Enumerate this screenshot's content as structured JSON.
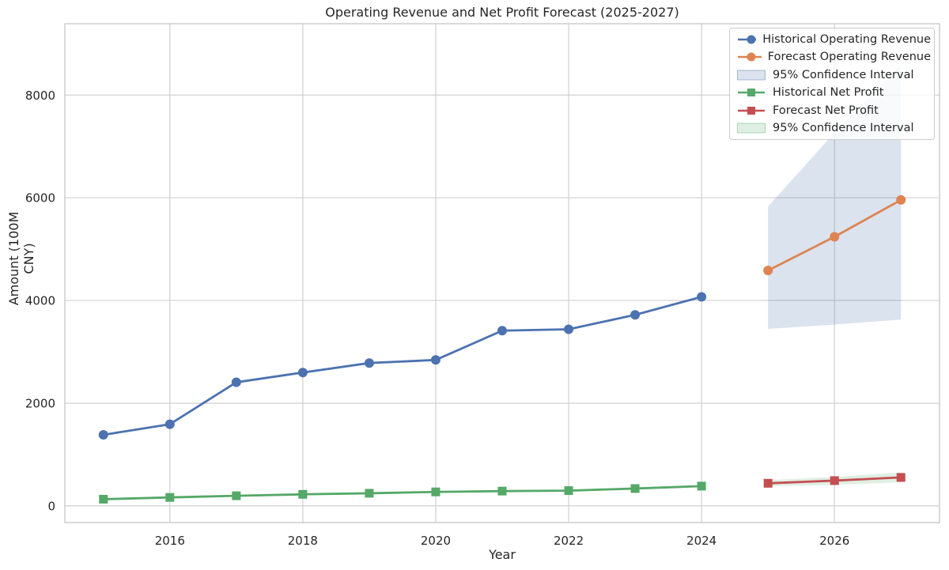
{
  "chart_data": {
    "type": "line",
    "title": "Operating Revenue and Net Profit Forecast (2025-2027)",
    "xlabel": "Year",
    "ylabel": "Amount (100M CNY)",
    "xlim": [
      2014.42,
      2027.58
    ],
    "ylim": [
      -325,
      9390
    ],
    "x_ticks": [
      2016,
      2018,
      2020,
      2022,
      2024,
      2026
    ],
    "y_ticks": [
      0,
      2000,
      4000,
      6000,
      8000
    ],
    "grid": true,
    "legend_position": "upper right",
    "colors": {
      "revenue_hist": "#4C72B0",
      "revenue_forecast": "#DD8452",
      "profit_hist": "#55A868",
      "profit_forecast": "#C44E52",
      "grid": "#D0D0D0",
      "spine": "#C6C6C6",
      "text": "#262626"
    },
    "series": [
      {
        "name": "95% Confidence Interval",
        "kind": "band",
        "color": "#4C72B0",
        "opacity": 0.2,
        "x": [
          2025,
          2026,
          2027
        ],
        "lower": [
          3448,
          3530,
          3628
        ],
        "upper": [
          5830,
          7270,
          8600
        ]
      },
      {
        "name": "95% Confidence Interval",
        "kind": "band",
        "color": "#55A868",
        "opacity": 0.18,
        "x": [
          2025,
          2026,
          2027
        ],
        "lower": [
          380,
          410,
          460
        ],
        "upper": [
          500,
          565,
          650
        ]
      },
      {
        "name": "Historical Operating Revenue",
        "kind": "line",
        "color": "#4C72B0",
        "marker": "circle",
        "x": [
          2015,
          2016,
          2017,
          2018,
          2019,
          2020,
          2021,
          2022,
          2023,
          2024
        ],
        "y": [
          1384,
          1590,
          2407,
          2597,
          2782,
          2842,
          3412,
          3439,
          3720,
          4071
        ]
      },
      {
        "name": "Forecast Operating Revenue",
        "kind": "line",
        "color": "#DD8452",
        "marker": "circle",
        "x": [
          2025,
          2026,
          2027
        ],
        "y": [
          4584,
          5241,
          5958
        ]
      },
      {
        "name": "Historical Net Profit",
        "kind": "line",
        "color": "#55A868",
        "marker": "square",
        "x": [
          2015,
          2016,
          2017,
          2018,
          2019,
          2020,
          2021,
          2022,
          2023,
          2024
        ],
        "y": [
          130,
          165,
          197,
          225,
          246,
          272,
          288,
          297,
          338,
          385
        ]
      },
      {
        "name": "Forecast Net Profit",
        "kind": "line",
        "color": "#C44E52",
        "marker": "square",
        "x": [
          2025,
          2026,
          2027
        ],
        "y": [
          440,
          492,
          554
        ]
      }
    ],
    "legend_items": [
      {
        "label": "Historical Operating Revenue",
        "swatch": "line-circle",
        "color": "#4C72B0"
      },
      {
        "label": "Forecast Operating Revenue",
        "swatch": "line-circle",
        "color": "#DD8452"
      },
      {
        "label": "95% Confidence Interval",
        "swatch": "patch",
        "color": "#4C72B0",
        "fill_opacity": 0.2
      },
      {
        "label": "Historical Net Profit",
        "swatch": "line-square",
        "color": "#55A868"
      },
      {
        "label": "Forecast Net Profit",
        "swatch": "line-square",
        "color": "#C44E52"
      },
      {
        "label": "95% Confidence Interval",
        "swatch": "patch",
        "color": "#55A868",
        "fill_opacity": 0.18
      }
    ]
  }
}
